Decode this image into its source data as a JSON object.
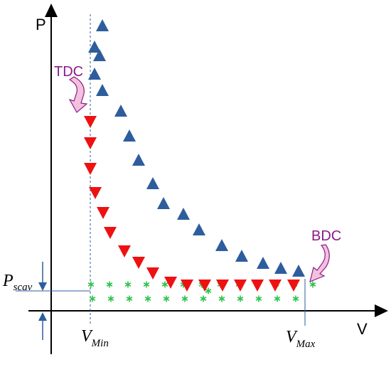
{
  "diagram": {
    "axis_labels": {
      "y": "P",
      "x": "V"
    },
    "annotations": {
      "tdc": "TDC",
      "bdc": "BDC",
      "p_scav_main": "P",
      "p_scav_sub": "scav",
      "v_min_main": "V",
      "v_min_sub": "Min",
      "v_max_main": "V",
      "v_max_sub": "Max"
    },
    "colors": {
      "compression": "#2e5d9e",
      "expansion": "#ee1111",
      "scavenge": "#2ec24a",
      "annotation": "#8b1a8b",
      "arrow_fill": "#f3c1dc",
      "guide_line": "#2e5d9e",
      "axis": "#000000"
    },
    "markers": {
      "compression": "triangle-up",
      "expansion": "triangle-down",
      "scavenge": "asterisk"
    }
  }
}
